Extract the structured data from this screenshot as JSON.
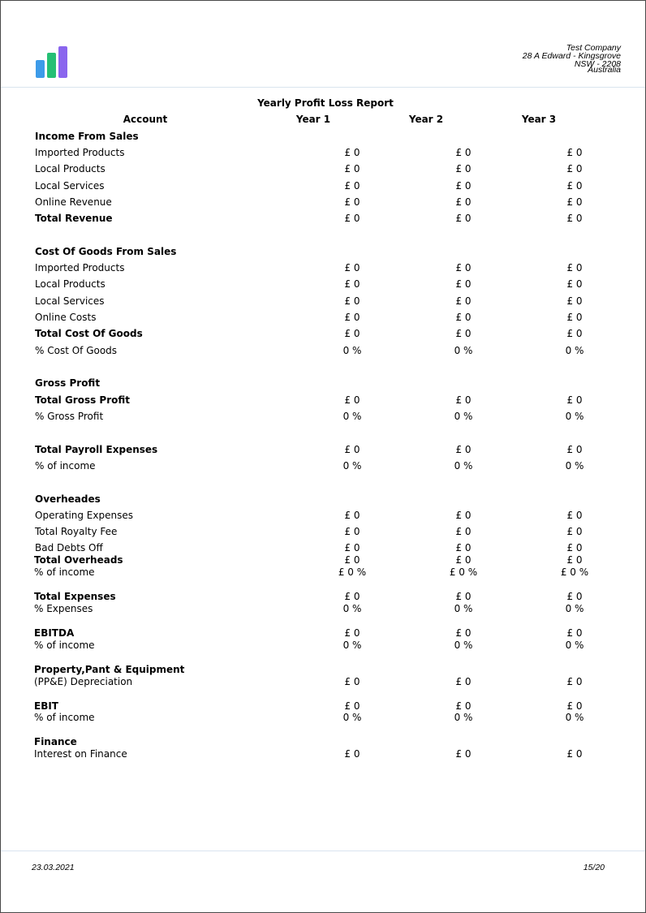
{
  "company": {
    "name": "Test Company",
    "address_line1": "28 A  Edward - Kingsgrove",
    "address_line2": "NSW - 2208",
    "address_line3": "Australia"
  },
  "logo": {
    "icon": "bar-chart-logo",
    "colors": [
      "#3d9be9",
      "#25bf74",
      "#8a65ee"
    ]
  },
  "report": {
    "title": "Yearly Profit Loss Report",
    "columns": {
      "account": "Account",
      "year1": "Year 1",
      "year2": "Year 2",
      "year3": "Year 3"
    }
  },
  "rows": {
    "income_header": "Income From Sales",
    "imported_products": {
      "label": "Imported Products",
      "y1": "£ 0",
      "y2": "£ 0",
      "y3": "£ 0"
    },
    "local_products": {
      "label": "Local Products",
      "y1": "£ 0",
      "y2": "£ 0",
      "y3": "£ 0"
    },
    "local_services": {
      "label": "Local Services",
      "y1": "£ 0",
      "y2": "£ 0",
      "y3": "£ 0"
    },
    "online_revenue": {
      "label": "Online Revenue",
      "y1": "£ 0",
      "y2": "£ 0",
      "y3": "£ 0"
    },
    "total_revenue": {
      "label": "Total Revenue",
      "y1": "£ 0",
      "y2": "£ 0",
      "y3": "£ 0"
    },
    "cogs_header": "Cost Of Goods From Sales",
    "cogs_imported_products": {
      "label": "Imported Products",
      "y1": "£ 0",
      "y2": "£ 0",
      "y3": "£ 0"
    },
    "cogs_local_products": {
      "label": "Local Products",
      "y1": "£ 0",
      "y2": "£ 0",
      "y3": "£ 0"
    },
    "cogs_local_services": {
      "label": "Local Services",
      "y1": "£ 0",
      "y2": "£ 0",
      "y3": "£ 0"
    },
    "online_costs": {
      "label": "Online Costs",
      "y1": "£ 0",
      "y2": "£ 0",
      "y3": "£ 0"
    },
    "total_cost_of_goods": {
      "label": "Total Cost Of Goods",
      "y1": "£ 0",
      "y2": "£ 0",
      "y3": "£ 0"
    },
    "pct_cost_of_goods": {
      "label": "% Cost Of Goods",
      "y1": "0 %",
      "y2": "0 %",
      "y3": "0 %"
    },
    "gross_profit_header": "Gross Profit",
    "total_gross_profit": {
      "label": "Total Gross Profit",
      "y1": "£ 0",
      "y2": "£ 0",
      "y3": "£ 0"
    },
    "pct_gross_profit": {
      "label": "% Gross Profit",
      "y1": "0 %",
      "y2": "0 %",
      "y3": "0 %"
    },
    "total_payroll_expenses": {
      "label": "Total Payroll Expenses",
      "y1": "£ 0",
      "y2": "£ 0",
      "y3": "£ 0"
    },
    "payroll_pct_income": {
      "label": "% of income",
      "y1": "0 %",
      "y2": "0 %",
      "y3": "0 %"
    },
    "overheads_header": "Overheades",
    "operating_expenses": {
      "label": "Operating Expenses",
      "y1": "£ 0",
      "y2": "£ 0",
      "y3": "£ 0"
    },
    "total_royalty_fee": {
      "label": "Total Royalty Fee",
      "y1": "£ 0",
      "y2": "£ 0",
      "y3": "£ 0"
    },
    "bad_debts_off": {
      "label": "Bad Debts Off",
      "y1": "£ 0",
      "y2": "£ 0",
      "y3": "£ 0"
    },
    "total_overheads": {
      "label": "Total Overheads",
      "y1": "£ 0",
      "y2": "£ 0",
      "y3": "£ 0"
    },
    "overheads_pct_income": {
      "label": "% of income",
      "y1": "£ 0 %",
      "y2": "£ 0 %",
      "y3": "£ 0 %"
    },
    "total_expenses": {
      "label": "Total Expenses",
      "y1": "£ 0",
      "y2": "£ 0",
      "y3": "£ 0"
    },
    "pct_expenses": {
      "label": "% Expenses",
      "y1": "0 %",
      "y2": "0 %",
      "y3": "0 %"
    },
    "ebitda": {
      "label": "EBITDA",
      "y1": "£ 0",
      "y2": "£ 0",
      "y3": "£ 0"
    },
    "ebitda_pct_income": {
      "label": "% of income",
      "y1": "0 %",
      "y2": "0 %",
      "y3": "0 %"
    },
    "ppe_header": "Property,Pant & Equipment",
    "ppe_depreciation": {
      "label": "(PP&E) Depreciation",
      "y1": "£ 0",
      "y2": "£ 0",
      "y3": "£ 0"
    },
    "ebit": {
      "label": "EBIT",
      "y1": "£ 0",
      "y2": "£ 0",
      "y3": "£ 0"
    },
    "ebit_pct_income": {
      "label": "% of income",
      "y1": "0 %",
      "y2": "0 %",
      "y3": "0 %"
    },
    "finance_header": "Finance",
    "interest_on_finance": {
      "label": "Interest on Finance",
      "y1": "£ 0",
      "y2": "£ 0",
      "y3": "£ 0"
    }
  },
  "footer": {
    "date": "23.03.2021",
    "page": "15/20"
  }
}
